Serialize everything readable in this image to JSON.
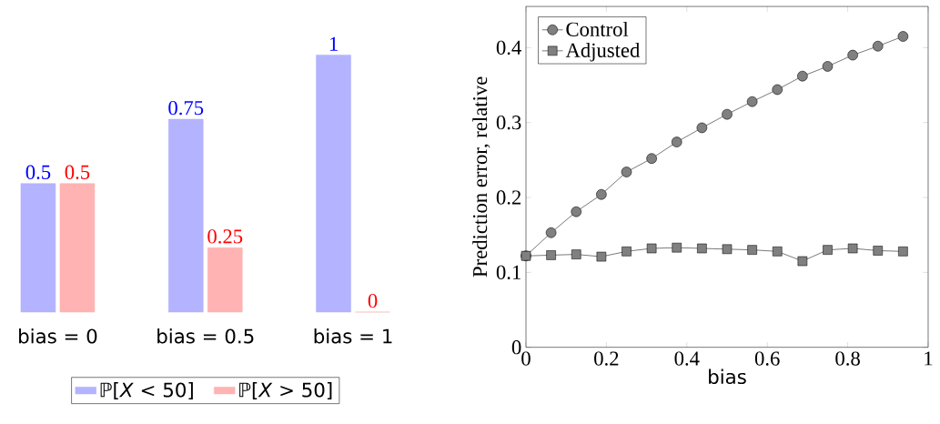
{
  "chart_data": [
    {
      "type": "bar",
      "categories": [
        "bias = 0",
        "bias = 0.5",
        "bias = 1"
      ],
      "series": [
        {
          "name": "ℙ[*X* < 50]",
          "color": "#b3b3ff",
          "values": [
            0.5,
            0.75,
            1
          ]
        },
        {
          "name": "ℙ[*X* > 50]",
          "color": "#ffb3b3",
          "values": [
            0.5,
            0.25,
            0
          ]
        }
      ],
      "data_labels": true,
      "legend": "bottom"
    },
    {
      "type": "line",
      "xlabel": "bias",
      "ylabel": "Prediction error, relative",
      "x": [
        0,
        0.0625,
        0.125,
        0.1875,
        0.25,
        0.3125,
        0.375,
        0.4375,
        0.5,
        0.5625,
        0.625,
        0.6875,
        0.75,
        0.8125,
        0.875,
        0.9375
      ],
      "series": [
        {
          "name": "Control",
          "color": "#808080",
          "marker": "circle",
          "values": [
            0.122,
            0.153,
            0.181,
            0.204,
            0.234,
            0.252,
            0.274,
            0.293,
            0.311,
            0.328,
            0.344,
            0.362,
            0.375,
            0.39,
            0.402,
            0.415
          ]
        },
        {
          "name": "Adjusted",
          "color": "#808080",
          "marker": "square",
          "values": [
            0.122,
            0.123,
            0.124,
            0.121,
            0.128,
            0.132,
            0.133,
            0.132,
            0.131,
            0.13,
            0.128,
            0.115,
            0.13,
            0.132,
            0.129,
            0.128
          ]
        }
      ],
      "xlim": [
        0,
        1
      ],
      "ylim": [
        0,
        0.455
      ],
      "xticks": [
        0,
        0.2,
        0.4,
        0.6,
        0.8,
        1
      ],
      "yticks": [
        0,
        0.1,
        0.2,
        0.3,
        0.4
      ],
      "line_style": "solid",
      "legend": "top left",
      "grid": false
    }
  ]
}
